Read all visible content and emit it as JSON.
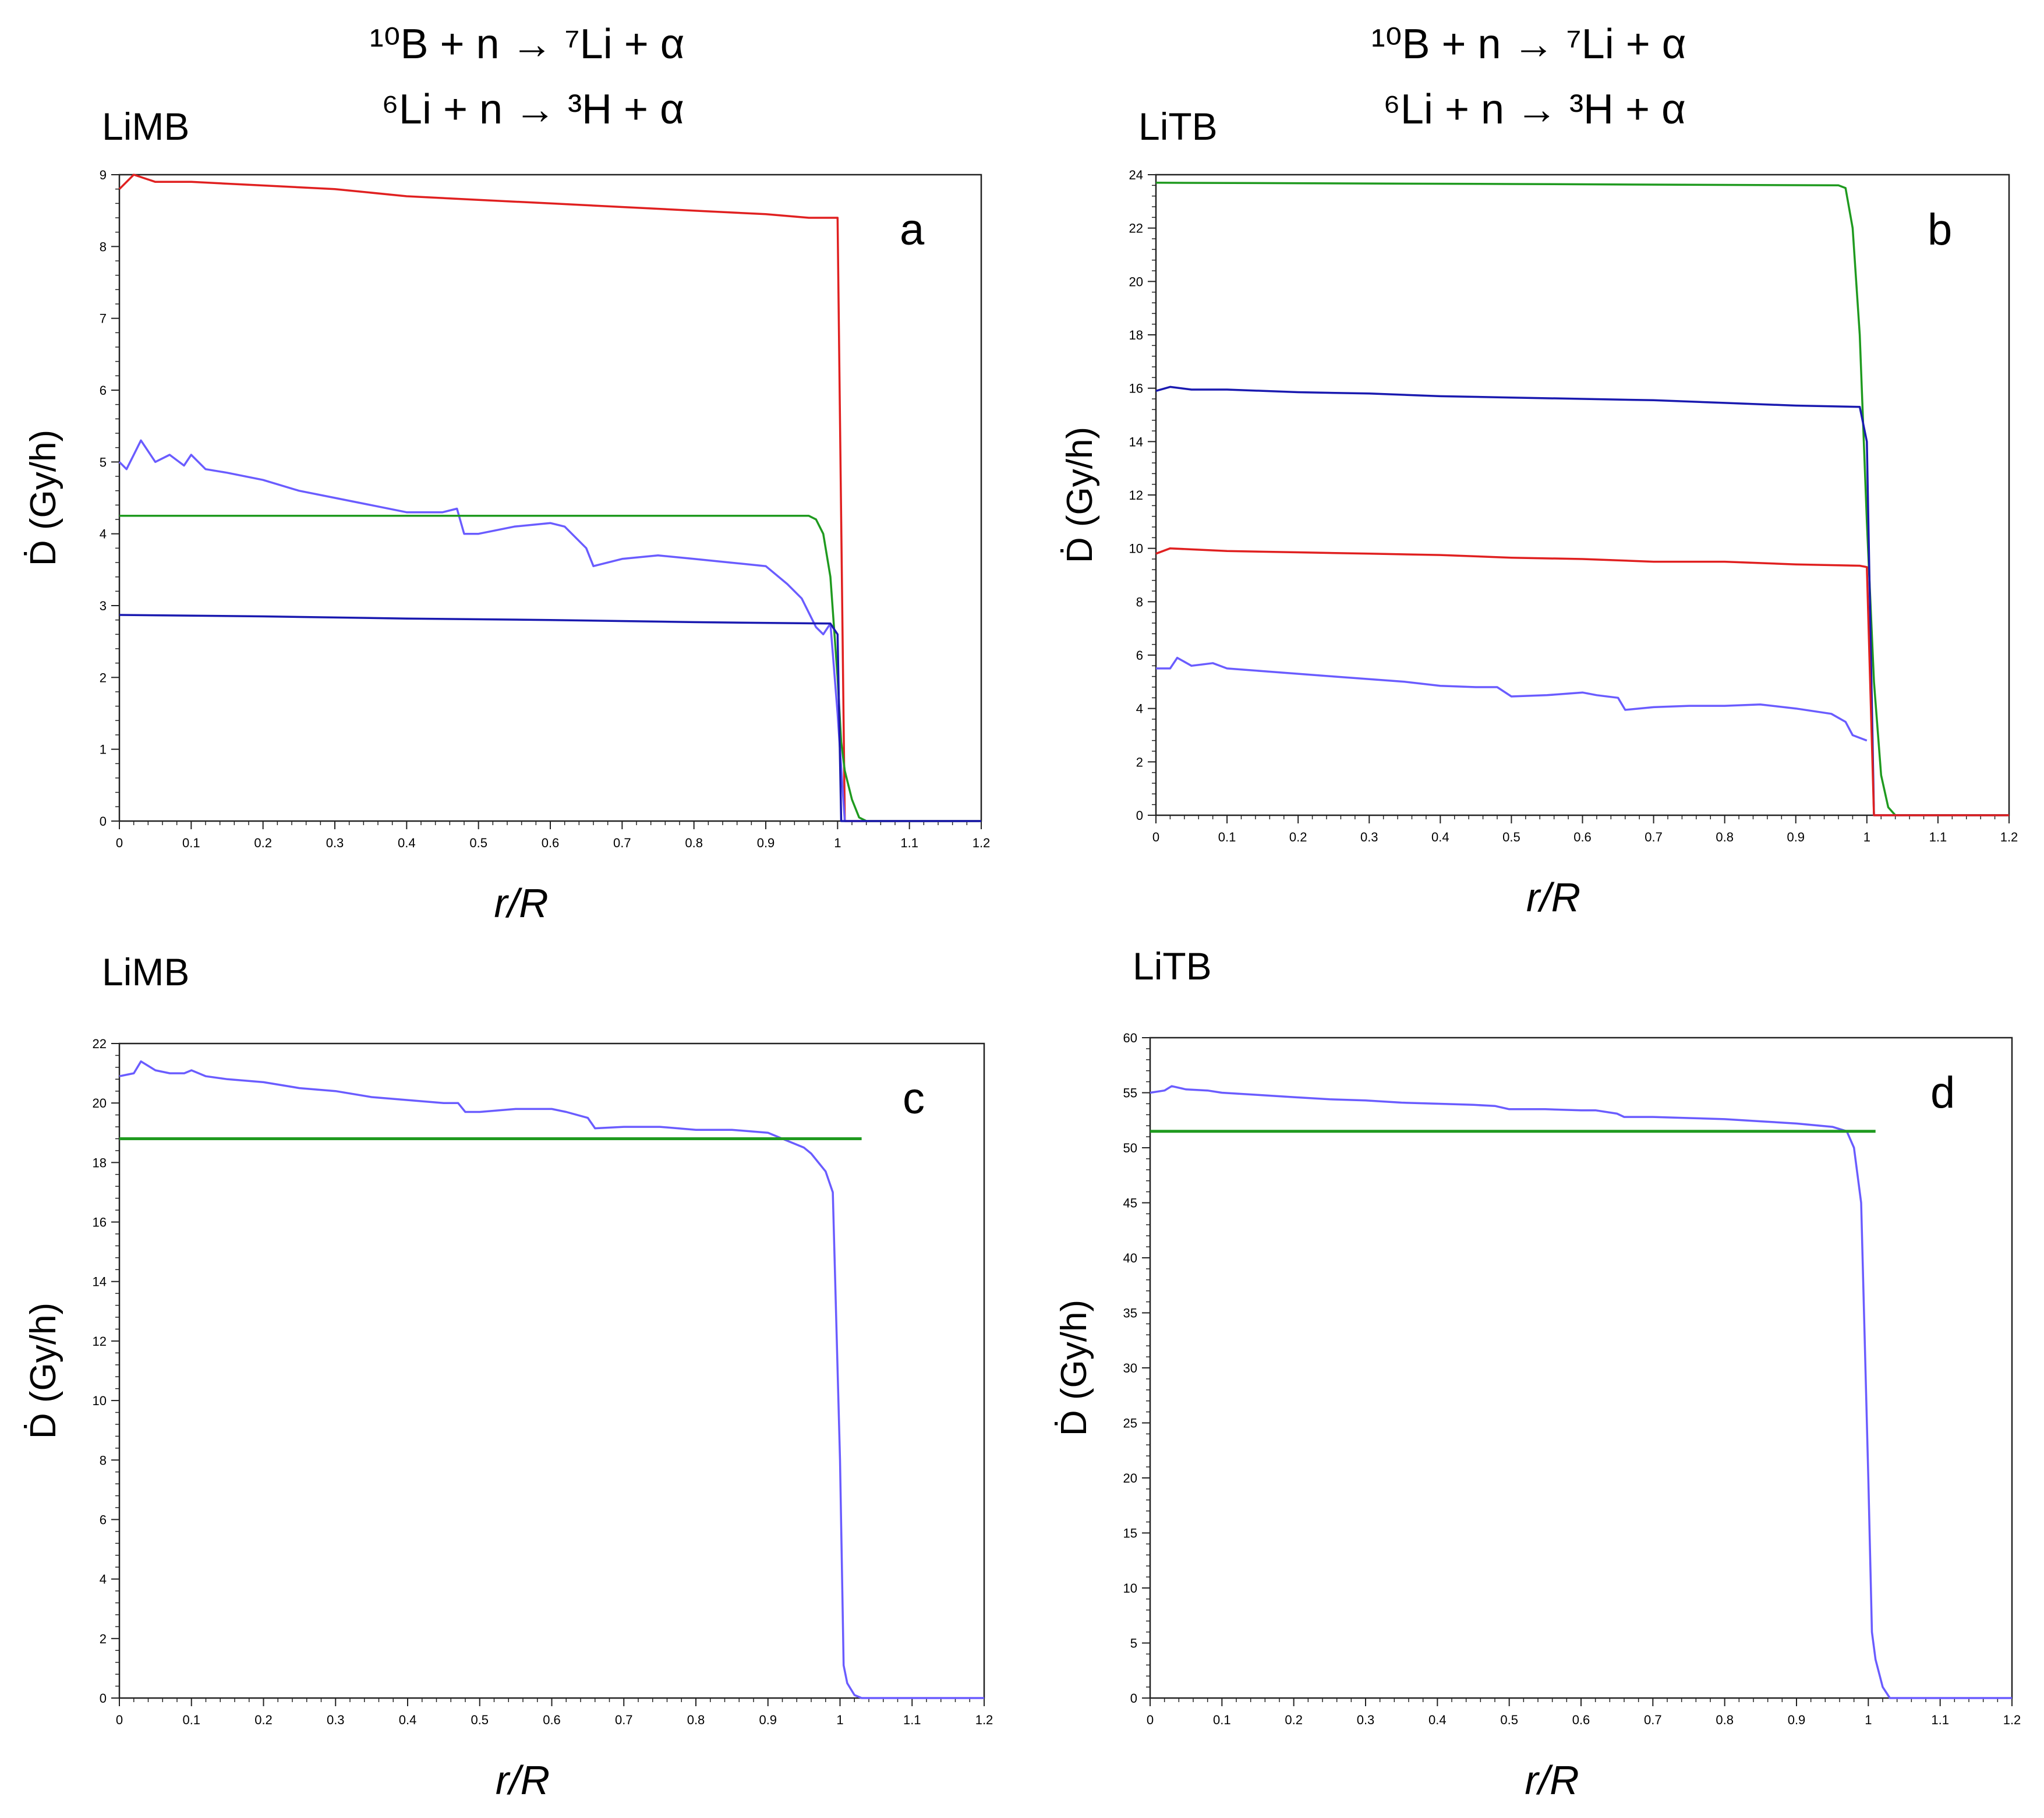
{
  "reactions": {
    "line1": "¹⁰B + n → ⁷Li + α",
    "line2": "⁶Li + n → ³H + α"
  },
  "chart_data": [
    {
      "type": "line",
      "panel": "a",
      "title": "LiMB",
      "letter": "a",
      "xlabel": "r/R",
      "ylabel": "Ḋ (Gy/h)",
      "xlim": [
        0,
        1.2
      ],
      "ylim": [
        0,
        9
      ],
      "xticks": [
        "0",
        "0.1",
        "0.2",
        "0.3",
        "0.4",
        "0.5",
        "0.6",
        "0.7",
        "0.8",
        "0.9",
        "1",
        "1.1",
        "1.2"
      ],
      "yticks": [
        "0",
        "1",
        "2",
        "3",
        "4",
        "5",
        "6",
        "7",
        "8",
        "9"
      ],
      "series": [
        {
          "name": "red",
          "color": "#e02020",
          "x": [
            0,
            0.02,
            0.05,
            0.1,
            0.2,
            0.3,
            0.4,
            0.5,
            0.6,
            0.7,
            0.8,
            0.9,
            0.96,
            0.99,
            1.0,
            1.01,
            1.03,
            1.2
          ],
          "y": [
            8.8,
            9.0,
            8.9,
            8.9,
            8.85,
            8.8,
            8.7,
            8.65,
            8.6,
            8.55,
            8.5,
            8.45,
            8.4,
            8.4,
            8.4,
            0.0,
            0.0,
            0.0
          ]
        },
        {
          "name": "purple",
          "color": "#6a5cff",
          "x": [
            0,
            0.01,
            0.02,
            0.03,
            0.05,
            0.07,
            0.09,
            0.1,
            0.12,
            0.15,
            0.2,
            0.25,
            0.3,
            0.35,
            0.4,
            0.45,
            0.47,
            0.48,
            0.5,
            0.55,
            0.6,
            0.62,
            0.65,
            0.66,
            0.7,
            0.75,
            0.8,
            0.85,
            0.9,
            0.93,
            0.95,
            0.96,
            0.97,
            0.98,
            0.99,
            1.0,
            1.01
          ],
          "y": [
            5.0,
            4.9,
            5.1,
            5.3,
            5.0,
            5.1,
            4.95,
            5.1,
            4.9,
            4.85,
            4.75,
            4.6,
            4.5,
            4.4,
            4.3,
            4.3,
            4.35,
            4.0,
            4.0,
            4.1,
            4.15,
            4.1,
            3.8,
            3.55,
            3.65,
            3.7,
            3.65,
            3.6,
            3.55,
            3.3,
            3.1,
            2.9,
            2.7,
            2.6,
            2.75,
            1.5,
            0.0
          ]
        },
        {
          "name": "green",
          "color": "#1f9a1f",
          "x": [
            0,
            0.5,
            0.96,
            0.97,
            0.98,
            0.99,
            1.0,
            1.005,
            1.01,
            1.02,
            1.03,
            1.04,
            1.2
          ],
          "y": [
            4.25,
            4.25,
            4.25,
            4.2,
            4.0,
            3.4,
            2.0,
            1.1,
            0.7,
            0.3,
            0.05,
            0.0,
            0.0
          ]
        },
        {
          "name": "blue",
          "color": "#1a1ab0",
          "x": [
            0,
            0.2,
            0.4,
            0.6,
            0.8,
            0.99,
            1.0,
            1.005,
            1.2
          ],
          "y": [
            2.87,
            2.85,
            2.82,
            2.8,
            2.77,
            2.75,
            2.6,
            0.0,
            0.0
          ]
        }
      ]
    },
    {
      "type": "line",
      "panel": "b",
      "title": "LiTB",
      "letter": "b",
      "xlabel": "r/R",
      "ylabel": "Ḋ (Gy/h)",
      "xlim": [
        0,
        1.2
      ],
      "ylim": [
        0,
        24
      ],
      "xticks": [
        "0",
        "0.1",
        "0.2",
        "0.3",
        "0.4",
        "0.5",
        "0.6",
        "0.7",
        "0.8",
        "0.9",
        "1",
        "1.1",
        "1.2"
      ],
      "yticks": [
        "0",
        "2",
        "4",
        "6",
        "8",
        "10",
        "12",
        "14",
        "16",
        "18",
        "20",
        "22",
        "24"
      ],
      "series": [
        {
          "name": "green",
          "color": "#1f9a1f",
          "x": [
            0,
            0.5,
            0.96,
            0.97,
            0.98,
            0.99,
            1.0,
            1.01,
            1.02,
            1.03,
            1.04,
            1.2
          ],
          "y": [
            23.7,
            23.65,
            23.6,
            23.5,
            22.0,
            18.0,
            11.0,
            5.0,
            1.5,
            0.3,
            0.0,
            0.0
          ]
        },
        {
          "name": "blue",
          "color": "#1a1ab0",
          "x": [
            0,
            0.02,
            0.05,
            0.1,
            0.2,
            0.3,
            0.4,
            0.5,
            0.6,
            0.7,
            0.8,
            0.9,
            0.99,
            1.0,
            1.01,
            1.2
          ],
          "y": [
            15.9,
            16.05,
            15.95,
            15.95,
            15.85,
            15.8,
            15.7,
            15.65,
            15.6,
            15.55,
            15.45,
            15.35,
            15.3,
            14.0,
            0.0,
            0.0
          ]
        },
        {
          "name": "red",
          "color": "#e02020",
          "x": [
            0,
            0.02,
            0.1,
            0.2,
            0.3,
            0.4,
            0.5,
            0.6,
            0.7,
            0.8,
            0.9,
            0.99,
            1.0,
            1.01,
            1.2
          ],
          "y": [
            9.8,
            10.0,
            9.9,
            9.85,
            9.8,
            9.75,
            9.65,
            9.6,
            9.5,
            9.5,
            9.4,
            9.35,
            9.3,
            0.0,
            0.0
          ]
        },
        {
          "name": "purple",
          "color": "#6a5cff",
          "x": [
            0,
            0.02,
            0.03,
            0.05,
            0.08,
            0.1,
            0.15,
            0.2,
            0.25,
            0.3,
            0.35,
            0.4,
            0.45,
            0.48,
            0.5,
            0.55,
            0.6,
            0.62,
            0.65,
            0.66,
            0.7,
            0.75,
            0.8,
            0.85,
            0.9,
            0.95,
            0.97,
            0.98,
            0.99,
            1.0
          ],
          "y": [
            5.5,
            5.5,
            5.9,
            5.6,
            5.7,
            5.5,
            5.4,
            5.3,
            5.2,
            5.1,
            5.0,
            4.85,
            4.8,
            4.8,
            4.45,
            4.5,
            4.6,
            4.5,
            4.4,
            3.95,
            4.05,
            4.1,
            4.1,
            4.15,
            4.0,
            3.8,
            3.5,
            3.0,
            2.9,
            2.8
          ]
        }
      ]
    },
    {
      "type": "line",
      "panel": "c",
      "title": "LiMB",
      "letter": "c",
      "xlabel": "r/R",
      "ylabel": "Ḋ (Gy/h)",
      "xlim": [
        0,
        1.2
      ],
      "ylim": [
        0,
        22
      ],
      "xticks": [
        "0",
        "0.1",
        "0.2",
        "0.3",
        "0.4",
        "0.5",
        "0.6",
        "0.7",
        "0.8",
        "0.9",
        "1",
        "1.1",
        "1.2"
      ],
      "yticks": [
        "0",
        "2",
        "4",
        "6",
        "8",
        "10",
        "12",
        "14",
        "16",
        "18",
        "20",
        "22"
      ],
      "series": [
        {
          "name": "purple",
          "color": "#6a5cff",
          "x": [
            0,
            0.01,
            0.02,
            0.03,
            0.05,
            0.07,
            0.09,
            0.1,
            0.12,
            0.15,
            0.2,
            0.25,
            0.3,
            0.35,
            0.4,
            0.45,
            0.47,
            0.48,
            0.5,
            0.55,
            0.6,
            0.62,
            0.65,
            0.66,
            0.7,
            0.75,
            0.8,
            0.85,
            0.9,
            0.93,
            0.95,
            0.96,
            0.97,
            0.98,
            0.99,
            1.0,
            1.005,
            1.01,
            1.02,
            1.03,
            1.2
          ],
          "y": [
            20.9,
            20.95,
            21.0,
            21.4,
            21.1,
            21.0,
            21.0,
            21.1,
            20.9,
            20.8,
            20.7,
            20.5,
            20.4,
            20.2,
            20.1,
            20.0,
            20.0,
            19.7,
            19.7,
            19.8,
            19.8,
            19.7,
            19.5,
            19.15,
            19.2,
            19.2,
            19.1,
            19.1,
            19.0,
            18.7,
            18.5,
            18.3,
            18.0,
            17.7,
            17.0,
            8.0,
            1.1,
            0.5,
            0.1,
            0.0,
            0.0
          ]
        },
        {
          "name": "green",
          "color": "#1f9a1f",
          "x": [
            0,
            1.03
          ],
          "y": [
            18.8,
            18.8
          ]
        }
      ]
    },
    {
      "type": "line",
      "panel": "d",
      "title": "LiTB",
      "letter": "d",
      "xlabel": "r/R",
      "ylabel": "Ḋ (Gy/h)",
      "xlim": [
        0,
        1.2
      ],
      "ylim": [
        0,
        60
      ],
      "xticks": [
        "0",
        "0.1",
        "0.2",
        "0.3",
        "0.4",
        "0.5",
        "0.6",
        "0.7",
        "0.8",
        "0.9",
        "1",
        "1.1",
        "1.2"
      ],
      "yticks": [
        "0",
        "5",
        "10",
        "15",
        "20",
        "25",
        "30",
        "35",
        "40",
        "45",
        "50",
        "55",
        "60"
      ],
      "series": [
        {
          "name": "purple",
          "color": "#6a5cff",
          "x": [
            0,
            0.02,
            0.03,
            0.05,
            0.08,
            0.1,
            0.15,
            0.2,
            0.25,
            0.3,
            0.35,
            0.4,
            0.45,
            0.48,
            0.5,
            0.55,
            0.6,
            0.62,
            0.65,
            0.66,
            0.7,
            0.75,
            0.8,
            0.85,
            0.9,
            0.95,
            0.97,
            0.98,
            0.99,
            1.0,
            1.005,
            1.01,
            1.02,
            1.03,
            1.2
          ],
          "y": [
            55.0,
            55.2,
            55.6,
            55.3,
            55.2,
            55.0,
            54.8,
            54.6,
            54.4,
            54.3,
            54.1,
            54.0,
            53.9,
            53.8,
            53.5,
            53.5,
            53.4,
            53.4,
            53.1,
            52.8,
            52.8,
            52.7,
            52.6,
            52.4,
            52.2,
            51.9,
            51.5,
            50.0,
            45.0,
            20.0,
            6.0,
            3.5,
            1.0,
            0.0,
            0.0
          ]
        },
        {
          "name": "green",
          "color": "#1f9a1f",
          "x": [
            0,
            1.01
          ],
          "y": [
            51.5,
            51.5
          ]
        }
      ]
    }
  ]
}
